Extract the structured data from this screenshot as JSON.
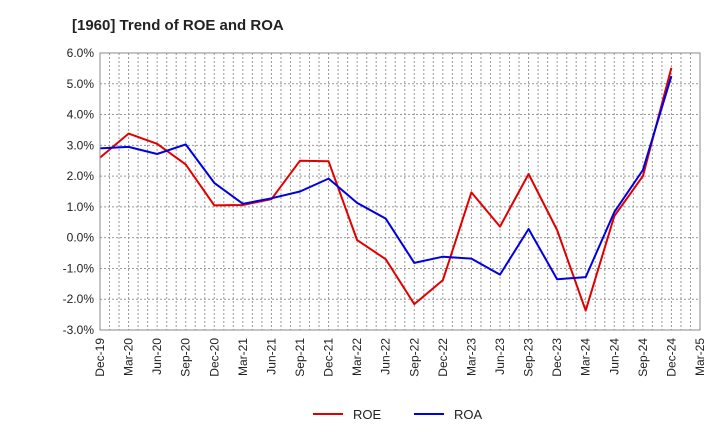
{
  "chart_data": {
    "type": "line",
    "title": "[1960]  Trend of ROE and ROA",
    "xlabel": "",
    "ylabel": "",
    "ylim": [
      -3.0,
      6.0
    ],
    "y_ticks": [
      "-3.0%",
      "-2.0%",
      "-1.0%",
      "0.0%",
      "1.0%",
      "2.0%",
      "3.0%",
      "4.0%",
      "5.0%",
      "6.0%"
    ],
    "y_tick_values": [
      -3,
      -2,
      -1,
      0,
      1,
      2,
      3,
      4,
      5,
      6
    ],
    "x": [
      "Dec-19",
      "Mar-20",
      "Jun-20",
      "Sep-20",
      "Dec-20",
      "Mar-21",
      "Jun-21",
      "Sep-21",
      "Dec-21",
      "Mar-22",
      "Jun-22",
      "Sep-22",
      "Dec-22",
      "Mar-23",
      "Jun-23",
      "Sep-23",
      "Dec-23",
      "Mar-24",
      "Jun-24",
      "Sep-24",
      "Dec-24",
      "Mar-25"
    ],
    "grid": true,
    "legend_position": "bottom",
    "series": [
      {
        "name": "ROE",
        "color": "#e00000",
        "values": [
          2.6,
          3.38,
          3.05,
          2.38,
          1.05,
          1.06,
          1.25,
          2.5,
          2.48,
          -0.08,
          -0.7,
          -2.16,
          -1.38,
          1.47,
          0.36,
          2.07,
          0.25,
          -2.37,
          0.7,
          2.0,
          5.52,
          null
        ]
      },
      {
        "name": "ROA",
        "color": "#0000e0",
        "values": [
          2.9,
          2.95,
          2.72,
          3.03,
          1.78,
          1.1,
          1.28,
          1.5,
          1.92,
          1.13,
          0.62,
          -0.82,
          -0.62,
          -0.68,
          -1.2,
          0.28,
          -1.35,
          -1.28,
          0.83,
          2.2,
          5.25,
          null
        ]
      }
    ]
  }
}
